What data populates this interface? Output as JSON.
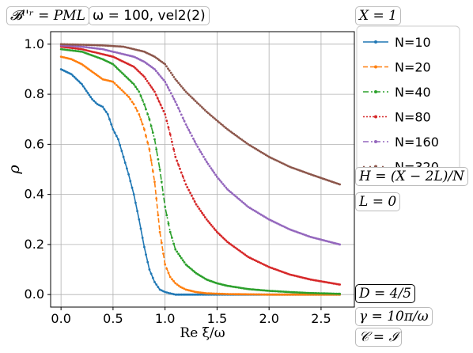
{
  "annotations": {
    "bc": "𝓑ˡ'ʳ = PML",
    "omega": "ω = 100, vel2(2)",
    "X": "X = 1",
    "H": "H = (X − 2L)/N",
    "L": "L = 0",
    "D": "D = 4/5",
    "gamma": "γ = 10π/ω",
    "C": "𝒞 = ℐ"
  },
  "chart_data": {
    "type": "line",
    "xlabel": "Re ξ/ω",
    "ylabel": "ρ",
    "xlim": [
      -0.1,
      2.82
    ],
    "ylim": [
      -0.05,
      1.05
    ],
    "xticks": [
      "0.0",
      "0.5",
      "1.0",
      "1.5",
      "2.0",
      "2.5"
    ],
    "yticks": [
      "0.0",
      "0.2",
      "0.4",
      "0.6",
      "0.8",
      "1.0"
    ],
    "grid": true,
    "legend_placement": "outside-right",
    "series": [
      {
        "name": "N=10",
        "color": "#1f77b4",
        "style": "solid",
        "marker": "dot",
        "x": [
          0.0,
          0.1,
          0.2,
          0.3,
          0.35,
          0.4,
          0.45,
          0.5,
          0.55,
          0.6,
          0.65,
          0.7,
          0.75,
          0.8,
          0.85,
          0.9,
          0.95,
          1.0,
          1.05,
          1.1,
          1.2,
          1.4,
          1.6,
          2.0,
          2.4,
          2.68
        ],
        "y": [
          0.9,
          0.88,
          0.84,
          0.78,
          0.76,
          0.75,
          0.72,
          0.66,
          0.62,
          0.55,
          0.48,
          0.4,
          0.3,
          0.19,
          0.1,
          0.05,
          0.02,
          0.01,
          0.005,
          0.0,
          0.0,
          0.0,
          0.0,
          0.0,
          0.0,
          0.0
        ]
      },
      {
        "name": "N=20",
        "color": "#ff7f0e",
        "style": "dashed",
        "marker": "dot",
        "x": [
          0.0,
          0.1,
          0.2,
          0.3,
          0.4,
          0.5,
          0.55,
          0.6,
          0.65,
          0.7,
          0.75,
          0.8,
          0.85,
          0.9,
          0.95,
          1.0,
          1.05,
          1.1,
          1.15,
          1.2,
          1.3,
          1.4,
          1.6,
          2.0,
          2.4,
          2.68
        ],
        "y": [
          0.95,
          0.94,
          0.92,
          0.89,
          0.86,
          0.85,
          0.83,
          0.81,
          0.79,
          0.76,
          0.72,
          0.66,
          0.58,
          0.45,
          0.25,
          0.12,
          0.07,
          0.045,
          0.03,
          0.02,
          0.01,
          0.005,
          0.002,
          0.0,
          0.0,
          0.0
        ]
      },
      {
        "name": "N=40",
        "color": "#2ca02c",
        "style": "dashdot",
        "marker": "dot",
        "x": [
          0.0,
          0.2,
          0.4,
          0.5,
          0.6,
          0.7,
          0.75,
          0.8,
          0.85,
          0.9,
          0.95,
          1.0,
          1.05,
          1.1,
          1.2,
          1.3,
          1.4,
          1.5,
          1.6,
          1.8,
          2.0,
          2.2,
          2.4,
          2.68
        ],
        "y": [
          0.98,
          0.97,
          0.94,
          0.92,
          0.88,
          0.84,
          0.81,
          0.76,
          0.7,
          0.62,
          0.5,
          0.35,
          0.25,
          0.18,
          0.12,
          0.085,
          0.06,
          0.045,
          0.035,
          0.022,
          0.015,
          0.01,
          0.006,
          0.003
        ]
      },
      {
        "name": "N=80",
        "color": "#d62728",
        "style": "dotted",
        "marker": "dot",
        "x": [
          0.0,
          0.2,
          0.4,
          0.5,
          0.6,
          0.7,
          0.8,
          0.9,
          1.0,
          1.05,
          1.1,
          1.2,
          1.3,
          1.4,
          1.5,
          1.6,
          1.8,
          2.0,
          2.2,
          2.4,
          2.68
        ],
        "y": [
          0.99,
          0.98,
          0.96,
          0.95,
          0.93,
          0.91,
          0.87,
          0.81,
          0.72,
          0.64,
          0.55,
          0.44,
          0.36,
          0.3,
          0.25,
          0.21,
          0.15,
          0.11,
          0.08,
          0.06,
          0.04
        ]
      },
      {
        "name": "N=160",
        "color": "#9467bd",
        "style": "dashdot",
        "marker": "dot",
        "x": [
          0.0,
          0.2,
          0.4,
          0.6,
          0.7,
          0.8,
          0.9,
          1.0,
          1.1,
          1.2,
          1.3,
          1.4,
          1.5,
          1.6,
          1.8,
          2.0,
          2.2,
          2.4,
          2.68
        ],
        "y": [
          0.995,
          0.99,
          0.98,
          0.96,
          0.95,
          0.93,
          0.9,
          0.85,
          0.77,
          0.68,
          0.6,
          0.53,
          0.47,
          0.42,
          0.35,
          0.3,
          0.26,
          0.23,
          0.2
        ]
      },
      {
        "name": "N=320",
        "color": "#8c564b",
        "style": "loosedash",
        "marker": "dot",
        "x": [
          0.0,
          0.2,
          0.4,
          0.6,
          0.8,
          0.9,
          1.0,
          1.1,
          1.2,
          1.4,
          1.6,
          1.8,
          2.0,
          2.2,
          2.4,
          2.68
        ],
        "y": [
          1.0,
          0.998,
          0.995,
          0.99,
          0.97,
          0.95,
          0.92,
          0.86,
          0.81,
          0.73,
          0.66,
          0.6,
          0.55,
          0.51,
          0.48,
          0.44
        ]
      }
    ]
  }
}
